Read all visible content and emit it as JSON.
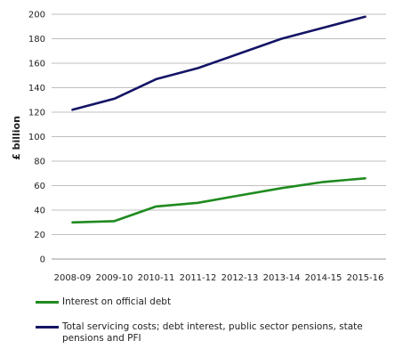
{
  "chart_data": {
    "type": "line",
    "categories": [
      "2008-09",
      "2009-10",
      "2010-11",
      "2011-12",
      "2012-13",
      "2013-14",
      "2014-15",
      "2015-16"
    ],
    "ylabel": "£ billion",
    "ylim": [
      0,
      200
    ],
    "yticks": [
      0,
      20,
      40,
      60,
      80,
      100,
      120,
      140,
      160,
      180,
      200
    ],
    "grid": true,
    "legend_position": "bottom",
    "series": [
      {
        "name": "Interest on official debt",
        "color": "#1f8a1f",
        "values": [
          30,
          31,
          43,
          46,
          52,
          58,
          63,
          66
        ]
      },
      {
        "name": "Total servicing costs; debt interest, public sector pensions, state pensions and PFI",
        "color": "#141466",
        "values": [
          122,
          131,
          147,
          156,
          168,
          180,
          189,
          198
        ]
      }
    ]
  }
}
